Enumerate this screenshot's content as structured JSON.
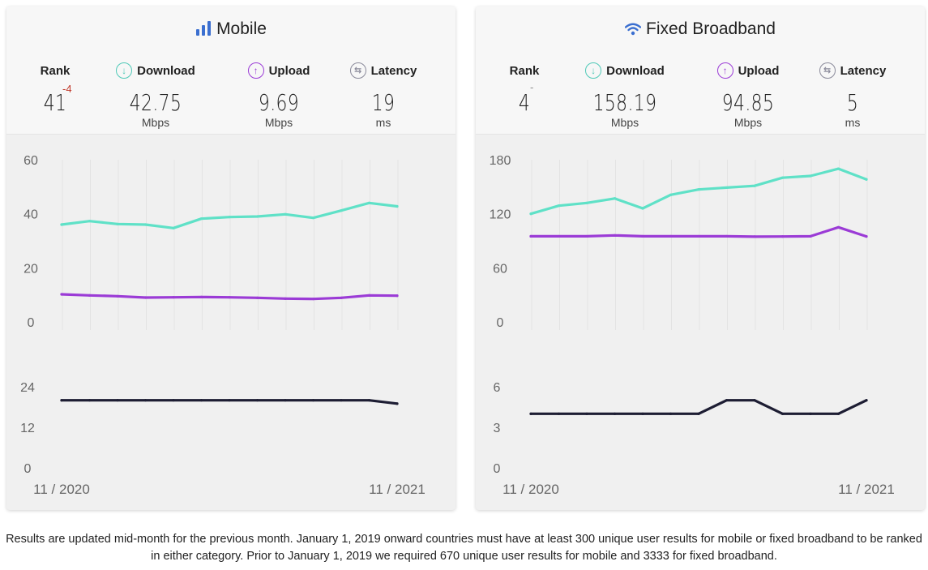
{
  "footnote": "Results are updated mid-month for the previous month. January 1, 2019 onward countries must have at least 300 unique user results for mobile or fixed broadband to be ranked in either category. Prior to January 1, 2019 we required 670 unique user results for mobile and 3333 for fixed broadband.",
  "colors": {
    "download": "#5fe1c7",
    "upload": "#9b3bd6",
    "latency": "#1d1d33",
    "download_icon": "#4fc9b7",
    "upload_icon": "#9b3bd6",
    "latency_icon": "#8a8a9a",
    "mobile_icon": "#3b6fd0",
    "wifi_icon": "#3b6fd0",
    "rank_delta": "#c0392b"
  },
  "panels": [
    {
      "id": "mobile",
      "title": "Mobile",
      "title_icon": "signal-bars-icon",
      "rank": {
        "label": "Rank",
        "value": "41",
        "delta": "-4"
      },
      "download": {
        "label": "Download",
        "icon": "arrow-down-circle-icon",
        "value": "42.75",
        "unit": "Mbps"
      },
      "upload": {
        "label": "Upload",
        "icon": "arrow-up-circle-icon",
        "value": "9.69",
        "unit": "Mbps"
      },
      "latency": {
        "label": "Latency",
        "icon": "arrows-swap-circle-icon",
        "value": "19",
        "unit": "ms"
      },
      "x_start_label": "11 / 2020",
      "x_end_label": "11 / 2021"
    },
    {
      "id": "fixed",
      "title": "Fixed Broadband",
      "title_icon": "wifi-icon",
      "rank": {
        "label": "Rank",
        "value": "4",
        "delta": "-"
      },
      "download": {
        "label": "Download",
        "icon": "arrow-down-circle-icon",
        "value": "158.19",
        "unit": "Mbps"
      },
      "upload": {
        "label": "Upload",
        "icon": "arrow-up-circle-icon",
        "value": "94.85",
        "unit": "Mbps"
      },
      "latency": {
        "label": "Latency",
        "icon": "arrows-swap-circle-icon",
        "value": "5",
        "unit": "ms"
      },
      "x_start_label": "11 / 2020",
      "x_end_label": "11 / 2021"
    }
  ],
  "chart_data": [
    {
      "type": "line",
      "panel": "mobile",
      "x": [
        "11/2020",
        "12/2020",
        "1/2021",
        "2/2021",
        "3/2021",
        "4/2021",
        "5/2021",
        "6/2021",
        "7/2021",
        "8/2021",
        "9/2021",
        "10/2021",
        "11/2021"
      ],
      "speed": {
        "ylim": [
          0,
          60
        ],
        "yticks": [
          0,
          20,
          40,
          60
        ],
        "series": [
          {
            "name": "Download",
            "values": [
              36.0,
              37.3,
              36.2,
              36.0,
              34.7,
              38.2,
              38.8,
              39.0,
              39.8,
              38.5,
              41.2,
              44.0,
              42.75
            ]
          },
          {
            "name": "Upload",
            "values": [
              10.2,
              9.8,
              9.5,
              9.0,
              9.1,
              9.2,
              9.1,
              8.9,
              8.6,
              8.5,
              8.9,
              9.8,
              9.69
            ]
          }
        ]
      },
      "latency": {
        "ylim": [
          0,
          24
        ],
        "yticks": [
          0,
          12,
          24
        ],
        "series": [
          {
            "name": "Latency",
            "values": [
              20,
              20,
              20,
              20,
              20,
              20,
              20,
              20,
              20,
              20,
              20,
              20,
              19
            ]
          }
        ]
      }
    },
    {
      "type": "line",
      "panel": "fixed",
      "x": [
        "11/2020",
        "12/2020",
        "1/2021",
        "2/2021",
        "3/2021",
        "4/2021",
        "5/2021",
        "6/2021",
        "7/2021",
        "8/2021",
        "9/2021",
        "10/2021",
        "11/2021"
      ],
      "speed": {
        "ylim": [
          0,
          180
        ],
        "yticks": [
          0,
          60,
          120,
          180
        ],
        "series": [
          {
            "name": "Download",
            "values": [
              120,
              129,
              132,
              137,
              126,
              141,
              147,
              149,
              151,
              160,
              162,
              170,
              158.19
            ]
          },
          {
            "name": "Upload",
            "values": [
              95,
              95,
              95,
              96,
              95,
              95,
              95,
              95,
              94.6,
              94.8,
              95,
              105,
              94.85
            ]
          }
        ]
      },
      "latency": {
        "ylim": [
          0,
          6
        ],
        "yticks": [
          0,
          3,
          6
        ],
        "series": [
          {
            "name": "Latency",
            "values": [
              4,
              4,
              4,
              4,
              4,
              4,
              4,
              5,
              5,
              4,
              4,
              4,
              5
            ]
          }
        ]
      }
    }
  ]
}
